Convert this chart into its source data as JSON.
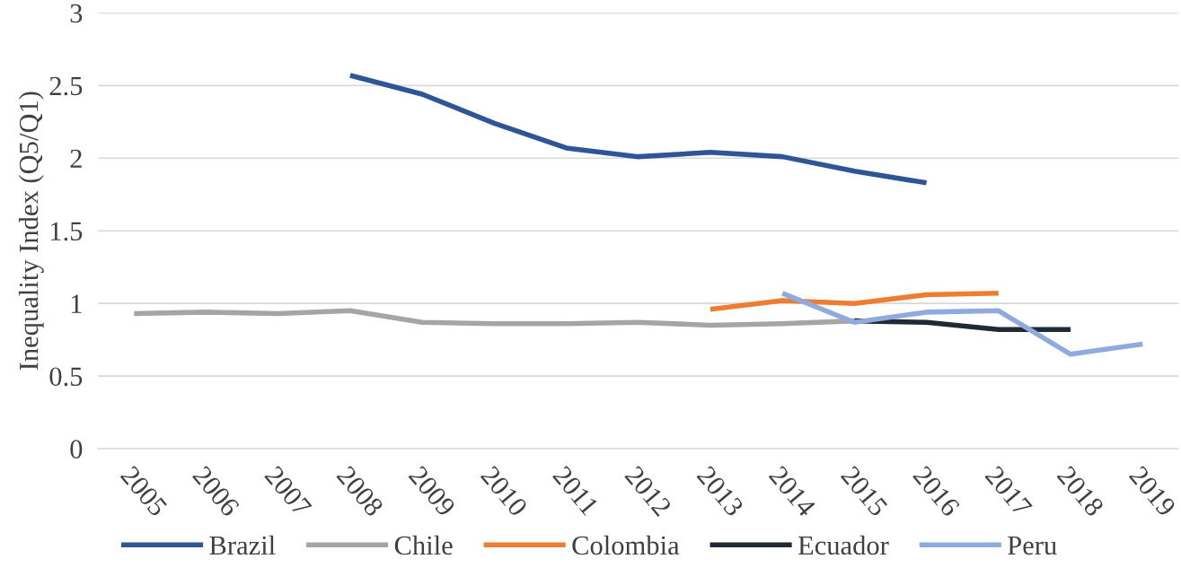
{
  "chart_data": {
    "type": "line",
    "ylabel": "Inequality Index (Q5/Q1)",
    "categories": [
      "2005",
      "2006",
      "2007",
      "2008",
      "2009",
      "2010",
      "2011",
      "2012",
      "2013",
      "2014",
      "2015",
      "2016",
      "2017",
      "2018",
      "2019"
    ],
    "series": [
      {
        "name": "Brazil",
        "color": "#2f5597",
        "values": [
          null,
          null,
          null,
          2.57,
          2.44,
          2.24,
          2.07,
          2.01,
          2.04,
          2.01,
          1.91,
          1.83,
          null,
          null,
          null
        ]
      },
      {
        "name": "Chile",
        "color": "#a5a5a5",
        "values": [
          0.93,
          0.94,
          0.93,
          0.95,
          0.87,
          0.86,
          0.86,
          0.87,
          0.85,
          0.86,
          0.88,
          null,
          null,
          null,
          null
        ]
      },
      {
        "name": "Colombia",
        "color": "#ed7d31",
        "values": [
          null,
          null,
          null,
          null,
          null,
          null,
          null,
          null,
          0.96,
          1.02,
          1.0,
          1.06,
          1.07,
          null,
          null
        ]
      },
      {
        "name": "Ecuador",
        "color": "#1f2a36",
        "values": [
          null,
          null,
          null,
          null,
          null,
          null,
          null,
          null,
          null,
          null,
          0.88,
          0.87,
          0.82,
          0.82,
          null
        ]
      },
      {
        "name": "Peru",
        "color": "#8faadc",
        "values": [
          null,
          null,
          null,
          null,
          null,
          null,
          null,
          null,
          null,
          1.07,
          0.87,
          0.94,
          0.95,
          0.65,
          0.72
        ]
      }
    ],
    "ylim": [
      0,
      3
    ],
    "yticks": [
      0,
      0.5,
      1,
      1.5,
      2,
      2.5,
      3
    ],
    "grid": "y",
    "legend": "bottom",
    "marker": "none",
    "line_style": "solid"
  }
}
